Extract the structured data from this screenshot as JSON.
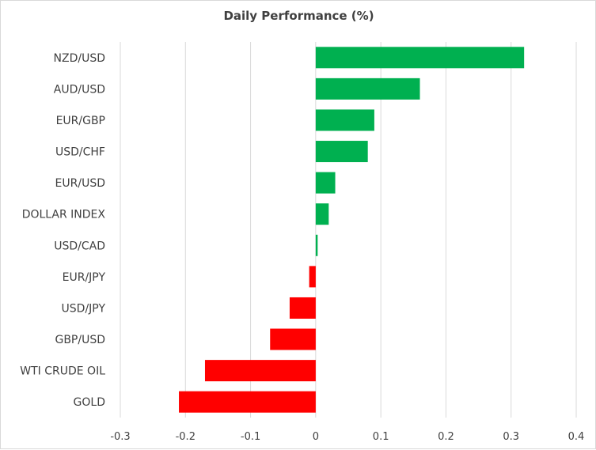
{
  "chart_data": {
    "type": "bar",
    "orientation": "horizontal",
    "title": "Daily Performance (%)",
    "xlabel": "",
    "ylabel": "",
    "xlim": [
      -0.3,
      0.4
    ],
    "x_ticks": [
      "-0.3",
      "-0.2",
      "-0.1",
      "0",
      "0.1",
      "0.2",
      "0.3",
      "0.4"
    ],
    "grid": "vertical",
    "legend": "none",
    "categories": [
      "NZD/USD",
      "AUD/USD",
      "EUR/GBP",
      "USD/CHF",
      "EUR/USD",
      "DOLLAR INDEX",
      "USD/CAD",
      "EUR/JPY",
      "USD/JPY",
      "GBP/USD",
      "WTI CRUDE OIL",
      "GOLD"
    ],
    "values": [
      0.32,
      0.16,
      0.09,
      0.08,
      0.03,
      0.02,
      0.003,
      -0.01,
      -0.04,
      -0.07,
      -0.17,
      -0.21
    ],
    "colors": {
      "positive": "#00b050",
      "negative": "#ff0000",
      "grid": "#d9d9d9",
      "text": "#404040"
    }
  }
}
